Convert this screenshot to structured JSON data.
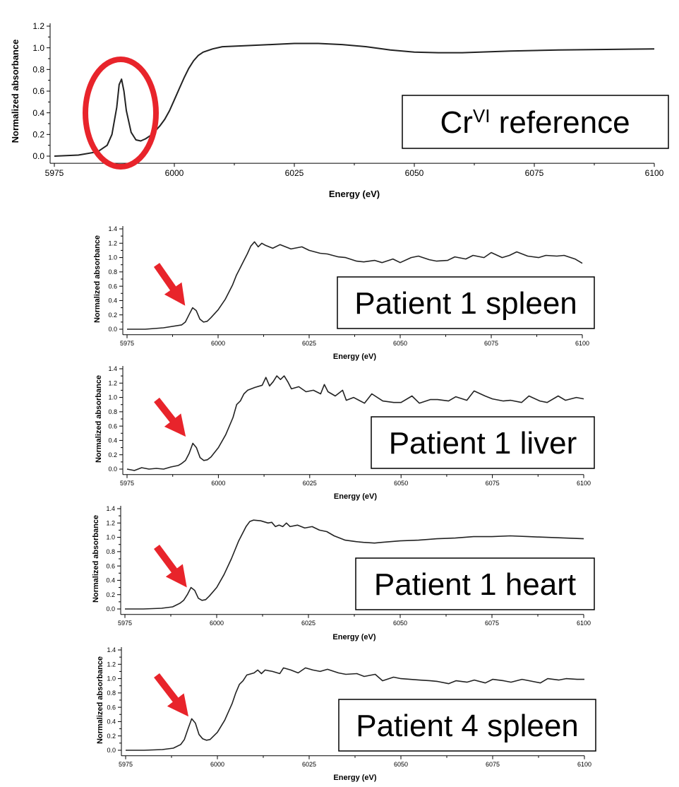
{
  "chart_data": [
    {
      "type": "line",
      "label_parts": {
        "main": "Cr",
        "sup": "VI",
        "rest": " reference"
      },
      "xlabel": "Energy (eV)",
      "ylabel": "Normalized absorbance",
      "xlim": [
        5975,
        6100
      ],
      "ylim": [
        -0.05,
        1.2
      ],
      "xticks": [
        5975,
        6000,
        6025,
        6050,
        6075,
        6100
      ],
      "yticks": [
        0.0,
        0.2,
        0.4,
        0.6,
        0.8,
        1.0,
        1.2
      ],
      "marker": "circle",
      "series": [
        {
          "x": [
            5975,
            5980,
            5984,
            5986,
            5987,
            5988,
            5988.5,
            5989,
            5989.5,
            5990,
            5991,
            5992,
            5993,
            5994,
            5995,
            5996,
            5997,
            5998,
            5999,
            6000,
            6001,
            6002,
            6003,
            6004,
            6005,
            6006,
            6008,
            6010,
            6015,
            6020,
            6025,
            6030,
            6035,
            6040,
            6045,
            6050,
            6055,
            6060,
            6070,
            6080,
            6090,
            6100
          ],
          "y": [
            0.0,
            0.01,
            0.04,
            0.1,
            0.2,
            0.45,
            0.66,
            0.71,
            0.6,
            0.42,
            0.22,
            0.15,
            0.14,
            0.16,
            0.19,
            0.23,
            0.28,
            0.34,
            0.42,
            0.52,
            0.62,
            0.72,
            0.81,
            0.88,
            0.93,
            0.96,
            0.99,
            1.01,
            1.02,
            1.03,
            1.04,
            1.04,
            1.03,
            1.01,
            0.98,
            0.96,
            0.955,
            0.955,
            0.97,
            0.98,
            0.985,
            0.99
          ]
        }
      ]
    },
    {
      "type": "line",
      "label": "Patient 1 spleen",
      "xlabel": "Energy (eV)",
      "ylabel": "Normalized absorbance",
      "xlim": [
        5975,
        6100
      ],
      "ylim": [
        -0.05,
        1.4
      ],
      "xticks": [
        5975,
        6000,
        6025,
        6050,
        6075,
        6100
      ],
      "yticks": [
        0.0,
        0.2,
        0.4,
        0.6,
        0.8,
        1.0,
        1.2,
        1.4
      ],
      "marker": "arrow",
      "series": [
        {
          "x": [
            5975,
            5980,
            5985,
            5990,
            5991,
            5992,
            5993,
            5994,
            5995,
            5996,
            5997,
            5998,
            6000,
            6002,
            6004,
            6005,
            6006,
            6007,
            6008,
            6009,
            6010,
            6011,
            6012,
            6013,
            6015,
            6017,
            6020,
            6023,
            6025,
            6028,
            6030,
            6033,
            6035,
            6038,
            6040,
            6043,
            6045,
            6048,
            6050,
            6053,
            6055,
            6058,
            6060,
            6063,
            6065,
            6068,
            6070,
            6073,
            6075,
            6078,
            6080,
            6082,
            6085,
            6088,
            6090,
            6093,
            6095,
            6098,
            6100
          ],
          "y": [
            0.0,
            0.0,
            0.02,
            0.06,
            0.1,
            0.2,
            0.3,
            0.26,
            0.14,
            0.1,
            0.11,
            0.16,
            0.27,
            0.42,
            0.62,
            0.75,
            0.85,
            0.95,
            1.05,
            1.16,
            1.22,
            1.15,
            1.2,
            1.17,
            1.13,
            1.18,
            1.12,
            1.15,
            1.1,
            1.06,
            1.05,
            1.01,
            1.0,
            0.95,
            0.94,
            0.96,
            0.93,
            0.98,
            0.93,
            1.0,
            1.02,
            0.97,
            0.95,
            0.96,
            1.01,
            0.98,
            1.03,
            1.0,
            1.07,
            1.0,
            1.03,
            1.08,
            1.02,
            1.0,
            1.03,
            1.02,
            1.03,
            0.98,
            0.92
          ]
        }
      ]
    },
    {
      "type": "line",
      "label": "Patient 1 liver",
      "xlabel": "Energy (eV)",
      "ylabel": "Normalized absorbance",
      "xlim": [
        5975,
        6100
      ],
      "ylim": [
        -0.05,
        1.4
      ],
      "xticks": [
        5975,
        6000,
        6025,
        6050,
        6075,
        6100
      ],
      "yticks": [
        0.0,
        0.2,
        0.4,
        0.6,
        0.8,
        1.0,
        1.2,
        1.4
      ],
      "marker": "arrow",
      "series": [
        {
          "x": [
            5975,
            5977,
            5979,
            5981,
            5983,
            5985,
            5987,
            5989,
            5990,
            5991,
            5992,
            5993,
            5994,
            5995,
            5996,
            5997,
            5998,
            6000,
            6002,
            6004,
            6005,
            6006,
            6007,
            6008,
            6010,
            6012,
            6013,
            6014,
            6015,
            6016,
            6017,
            6018,
            6019,
            6020,
            6022,
            6024,
            6026,
            6028,
            6029,
            6030,
            6032,
            6034,
            6035,
            6037,
            6040,
            6042,
            6045,
            6048,
            6050,
            6053,
            6055,
            6058,
            6060,
            6063,
            6065,
            6068,
            6070,
            6073,
            6075,
            6078,
            6080,
            6083,
            6085,
            6088,
            6090,
            6093,
            6095,
            6098,
            6100
          ],
          "y": [
            0.0,
            -0.02,
            0.02,
            0.0,
            0.01,
            0.0,
            0.03,
            0.05,
            0.08,
            0.12,
            0.22,
            0.36,
            0.3,
            0.16,
            0.12,
            0.13,
            0.17,
            0.3,
            0.48,
            0.72,
            0.9,
            0.95,
            1.05,
            1.1,
            1.14,
            1.17,
            1.28,
            1.16,
            1.22,
            1.3,
            1.25,
            1.3,
            1.22,
            1.12,
            1.15,
            1.08,
            1.1,
            1.05,
            1.18,
            1.08,
            1.02,
            1.1,
            0.96,
            1.0,
            0.92,
            1.05,
            0.95,
            0.93,
            0.93,
            1.02,
            0.92,
            0.97,
            0.97,
            0.95,
            1.01,
            0.96,
            1.09,
            1.02,
            0.98,
            0.95,
            0.96,
            0.93,
            1.02,
            0.95,
            0.93,
            1.02,
            0.96,
            1.0,
            0.98
          ]
        }
      ]
    },
    {
      "type": "line",
      "label": "Patient 1 heart",
      "xlabel": "Energy (eV)",
      "ylabel": "Normalized absorbance",
      "xlim": [
        5975,
        6100
      ],
      "ylim": [
        -0.05,
        1.4
      ],
      "xticks": [
        5975,
        6000,
        6025,
        6050,
        6075,
        6100
      ],
      "yticks": [
        0.0,
        0.2,
        0.4,
        0.6,
        0.8,
        1.0,
        1.2,
        1.4
      ],
      "marker": "arrow",
      "series": [
        {
          "x": [
            5975,
            5980,
            5985,
            5988,
            5990,
            5991,
            5992,
            5993,
            5994,
            5995,
            5996,
            5997,
            5998,
            6000,
            6002,
            6004,
            6006,
            6008,
            6009,
            6010,
            6012,
            6014,
            6015,
            6016,
            6017,
            6018,
            6019,
            6020,
            6022,
            6024,
            6026,
            6028,
            6030,
            6032,
            6035,
            6038,
            6040,
            6043,
            6045,
            6050,
            6055,
            6060,
            6065,
            6070,
            6075,
            6080,
            6085,
            6090,
            6095,
            6100
          ],
          "y": [
            0.0,
            0.0,
            0.01,
            0.03,
            0.08,
            0.12,
            0.2,
            0.3,
            0.26,
            0.15,
            0.12,
            0.13,
            0.18,
            0.3,
            0.48,
            0.7,
            0.95,
            1.15,
            1.22,
            1.24,
            1.23,
            1.2,
            1.21,
            1.15,
            1.17,
            1.15,
            1.2,
            1.15,
            1.17,
            1.13,
            1.15,
            1.1,
            1.08,
            1.02,
            0.96,
            0.94,
            0.93,
            0.92,
            0.93,
            0.95,
            0.96,
            0.98,
            0.99,
            1.01,
            1.01,
            1.02,
            1.01,
            1.0,
            0.99,
            0.98
          ]
        }
      ]
    },
    {
      "type": "line",
      "label": "Patient 4 spleen",
      "xlabel": "Energy (eV)",
      "ylabel": "Normalized absorbance",
      "xlim": [
        5975,
        6100
      ],
      "ylim": [
        -0.05,
        1.4
      ],
      "xticks": [
        5975,
        6000,
        6025,
        6050,
        6075,
        6100
      ],
      "yticks": [
        0.0,
        0.2,
        0.4,
        0.6,
        0.8,
        1.0,
        1.2,
        1.4
      ],
      "marker": "arrow",
      "series": [
        {
          "x": [
            5975,
            5980,
            5985,
            5988,
            5990,
            5991,
            5992,
            5993,
            5994,
            5995,
            5996,
            5997,
            5998,
            6000,
            6002,
            6004,
            6005,
            6006,
            6007,
            6008,
            6010,
            6011,
            6012,
            6013,
            6015,
            6017,
            6018,
            6020,
            6022,
            6024,
            6026,
            6028,
            6030,
            6033,
            6035,
            6038,
            6040,
            6043,
            6045,
            6048,
            6050,
            6055,
            6058,
            6060,
            6063,
            6065,
            6068,
            6070,
            6073,
            6075,
            6078,
            6080,
            6083,
            6085,
            6088,
            6090,
            6093,
            6095,
            6098,
            6100
          ],
          "y": [
            0.0,
            0.0,
            0.01,
            0.03,
            0.08,
            0.15,
            0.3,
            0.44,
            0.38,
            0.22,
            0.16,
            0.14,
            0.15,
            0.25,
            0.42,
            0.65,
            0.8,
            0.92,
            0.97,
            1.05,
            1.08,
            1.12,
            1.07,
            1.12,
            1.1,
            1.07,
            1.15,
            1.12,
            1.08,
            1.15,
            1.12,
            1.1,
            1.13,
            1.08,
            1.06,
            1.07,
            1.03,
            1.06,
            0.97,
            1.02,
            1.0,
            0.98,
            0.97,
            0.96,
            0.93,
            0.97,
            0.95,
            0.98,
            0.94,
            0.99,
            0.97,
            0.95,
            0.99,
            0.97,
            0.94,
            1.0,
            0.98,
            1.0,
            0.99,
            0.99
          ]
        }
      ]
    }
  ],
  "colors": {
    "line": "#222222",
    "marker": "#e8242b",
    "label_border": "#000000",
    "background": "#ffffff"
  }
}
